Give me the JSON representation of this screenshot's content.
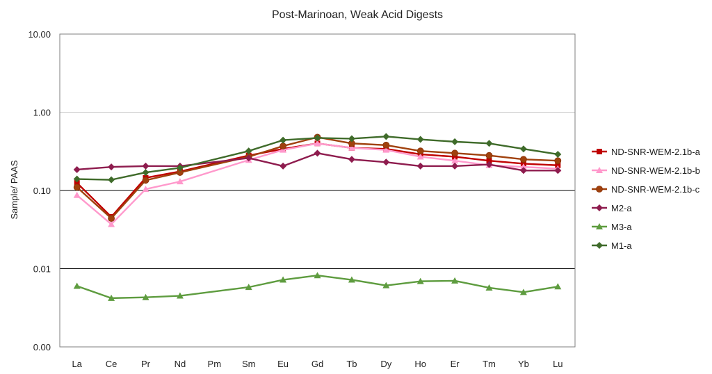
{
  "chart_data": {
    "type": "line",
    "title": "Post-Marinoan, Weak Acid Digests",
    "ylabel": "Sample/ PAAS",
    "xlabel": "",
    "yscale": "log",
    "ylim": [
      0.001,
      10
    ],
    "yticks": [
      0.001,
      0.01,
      0.1,
      1,
      10
    ],
    "ytick_labels": [
      "0.00",
      "0.01",
      "0.10",
      "1.00",
      "10.00"
    ],
    "grid": true,
    "legend_position": "right",
    "categories": [
      "La",
      "Ce",
      "Pr",
      "Nd",
      "Pm",
      "Sm",
      "Eu",
      "Gd",
      "Tb",
      "Dy",
      "Ho",
      "Er",
      "Tm",
      "Yb",
      "Lu"
    ],
    "series": [
      {
        "name": "ND-SNR-WEM-2.1b-a",
        "color": "#C00000",
        "marker": "square",
        "values": [
          0.125,
          0.046,
          0.145,
          0.175,
          null,
          0.28,
          0.34,
          0.4,
          0.35,
          0.34,
          0.29,
          0.27,
          0.24,
          0.22,
          0.21
        ]
      },
      {
        "name": "ND-SNR-WEM-2.1b-b",
        "color": "#FF99CC",
        "marker": "triangle",
        "values": [
          0.087,
          0.037,
          0.104,
          0.13,
          null,
          0.245,
          0.33,
          0.4,
          0.35,
          0.33,
          0.27,
          0.24,
          0.21,
          0.2,
          0.19
        ]
      },
      {
        "name": "ND-SNR-WEM-2.1b-c",
        "color": "#A0410D",
        "marker": "circle",
        "values": [
          0.11,
          0.044,
          0.135,
          0.17,
          null,
          0.27,
          0.37,
          0.48,
          0.4,
          0.38,
          0.32,
          0.3,
          0.28,
          0.25,
          0.24
        ]
      },
      {
        "name": "M2-a",
        "color": "#8E1C4E",
        "marker": "diamond",
        "values": [
          0.185,
          0.2,
          0.205,
          0.205,
          null,
          0.26,
          0.205,
          0.3,
          0.25,
          0.23,
          0.205,
          0.205,
          0.215,
          0.18,
          0.18
        ]
      },
      {
        "name": "M3-a",
        "color": "#5E9C3F",
        "marker": "triangle",
        "values": [
          0.006,
          0.0042,
          0.0043,
          0.0045,
          null,
          0.0058,
          0.0072,
          0.0082,
          0.0072,
          0.0061,
          0.0069,
          0.007,
          0.0057,
          0.005,
          0.0059
        ]
      },
      {
        "name": "M1-a",
        "color": "#3F6B2A",
        "marker": "diamond",
        "values": [
          0.14,
          0.137,
          0.17,
          0.195,
          null,
          0.32,
          0.44,
          0.47,
          0.46,
          0.49,
          0.45,
          0.42,
          0.4,
          0.34,
          0.29
        ]
      }
    ]
  }
}
